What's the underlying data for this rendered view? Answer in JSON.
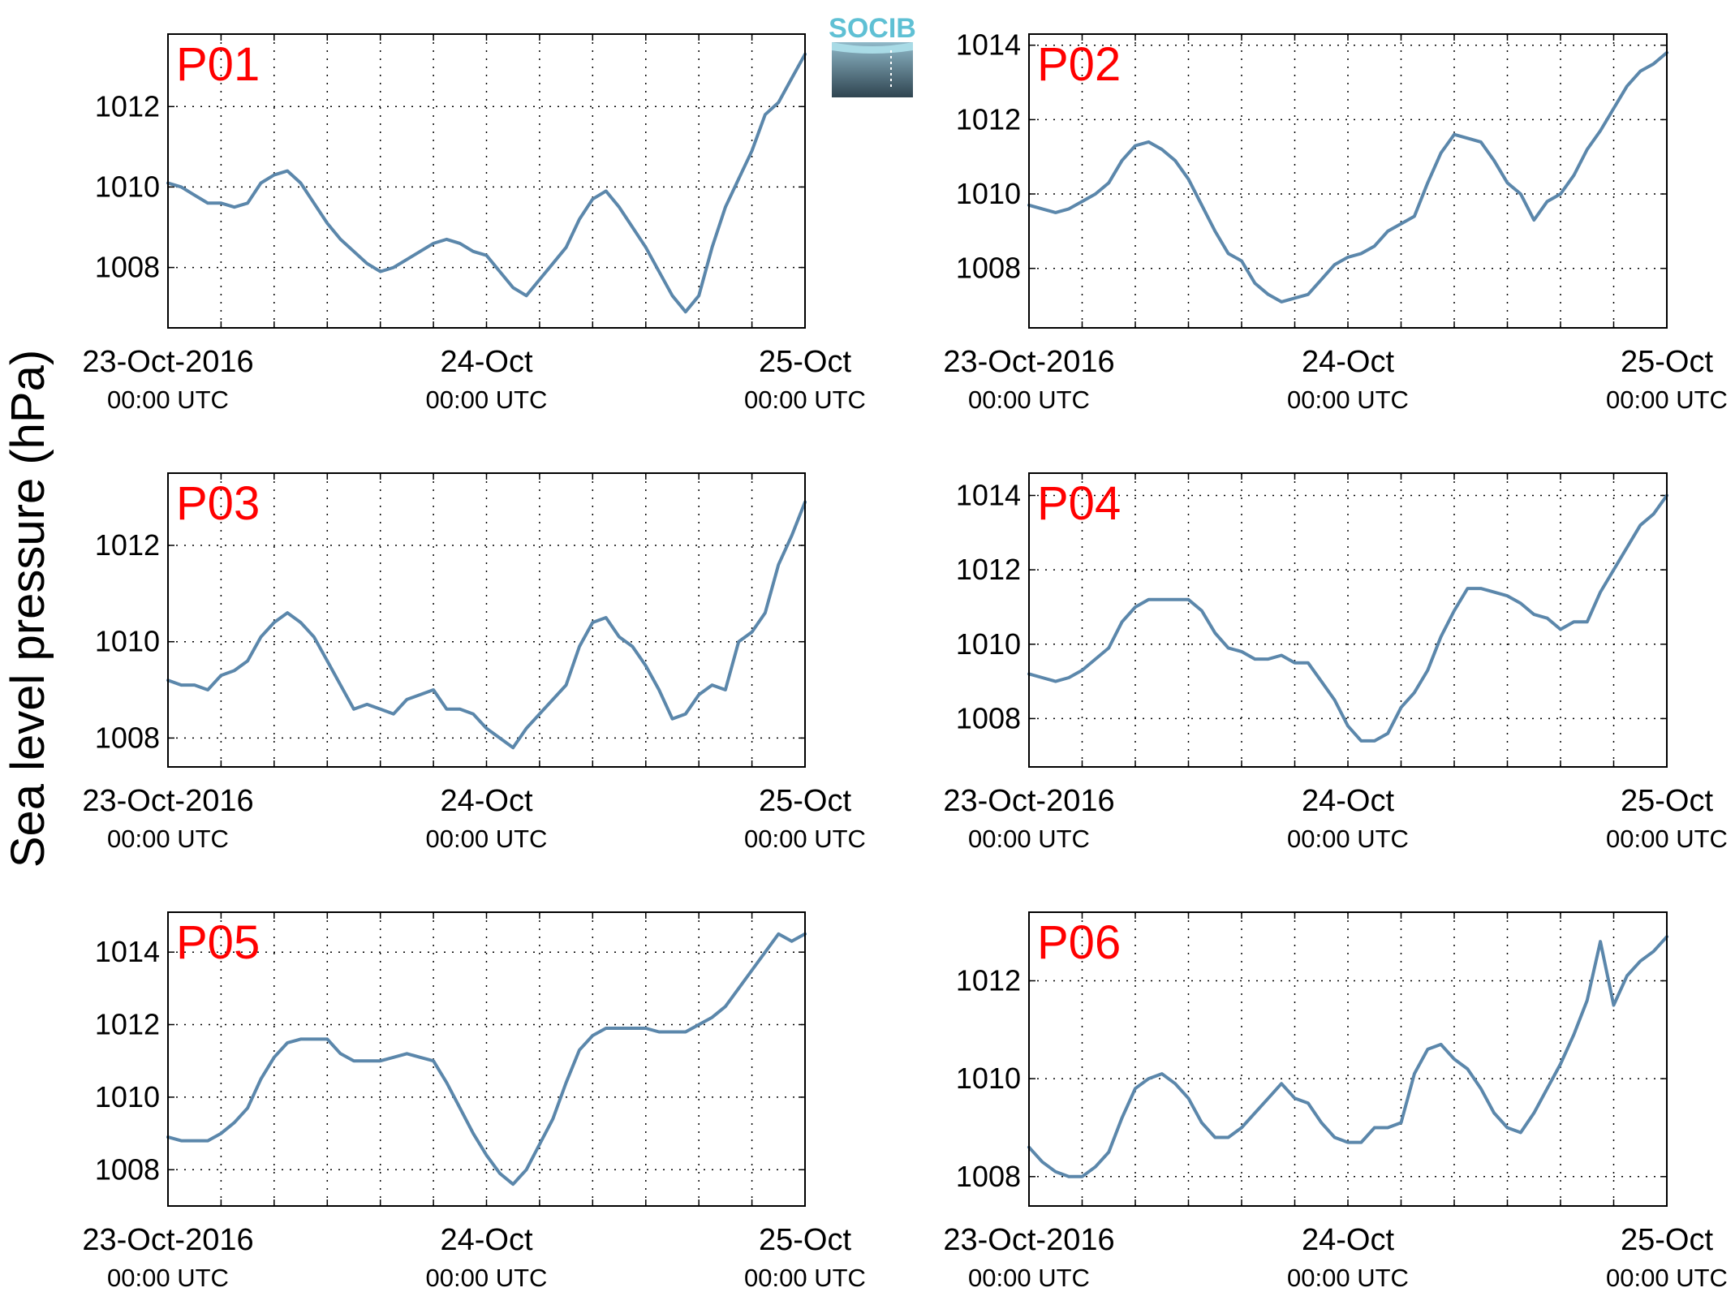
{
  "figure": {
    "ylabel": "Sea level pressure (hPa)",
    "logo_text": "SOCIB",
    "line_color": "#5b87ab",
    "label_color": "#ff0000"
  },
  "chart_data": [
    {
      "type": "line",
      "name": "P01",
      "ylim": [
        1006.5,
        1013.8
      ],
      "yticks": [
        1008,
        1010,
        1012
      ],
      "xlim": [
        0,
        48
      ],
      "grid": true,
      "xticks": [
        {
          "at": 0,
          "label": "23-Oct-2016",
          "sub": "00:00 UTC"
        },
        {
          "at": 24,
          "label": "24-Oct",
          "sub": "00:00 UTC"
        },
        {
          "at": 48,
          "label": "25-Oct",
          "sub": "00:00 UTC"
        }
      ],
      "x": [
        0,
        1,
        2,
        3,
        4,
        5,
        6,
        7,
        8,
        9,
        10,
        11,
        12,
        13,
        14,
        15,
        16,
        17,
        18,
        19,
        20,
        21,
        22,
        23,
        24,
        25,
        26,
        27,
        28,
        29,
        30,
        31,
        32,
        33,
        34,
        35,
        36,
        37,
        38,
        39,
        40,
        41,
        42,
        43,
        44,
        45,
        46,
        47,
        48
      ],
      "y": [
        1010.1,
        1010.0,
        1009.8,
        1009.6,
        1009.6,
        1009.5,
        1009.6,
        1010.1,
        1010.3,
        1010.4,
        1010.1,
        1009.6,
        1009.1,
        1008.7,
        1008.4,
        1008.1,
        1007.9,
        1008.0,
        1008.2,
        1008.4,
        1008.6,
        1008.7,
        1008.6,
        1008.4,
        1008.3,
        1007.9,
        1007.5,
        1007.3,
        1007.7,
        1008.1,
        1008.5,
        1009.2,
        1009.7,
        1009.9,
        1009.5,
        1009.0,
        1008.5,
        1007.9,
        1007.3,
        1006.9,
        1007.3,
        1008.5,
        1009.5,
        1010.2,
        1010.9,
        1011.8,
        1012.1,
        1012.7,
        1013.3
      ]
    },
    {
      "type": "line",
      "name": "P02",
      "ylim": [
        1006.4,
        1014.3
      ],
      "yticks": [
        1008,
        1010,
        1012,
        1014
      ],
      "xlim": [
        0,
        48
      ],
      "grid": true,
      "xticks": [
        {
          "at": 0,
          "label": "23-Oct-2016",
          "sub": "00:00 UTC"
        },
        {
          "at": 24,
          "label": "24-Oct",
          "sub": "00:00 UTC"
        },
        {
          "at": 48,
          "label": "25-Oct",
          "sub": "00:00 UTC"
        }
      ],
      "x": [
        0,
        1,
        2,
        3,
        4,
        5,
        6,
        7,
        8,
        9,
        10,
        11,
        12,
        13,
        14,
        15,
        16,
        17,
        18,
        19,
        20,
        21,
        22,
        23,
        24,
        25,
        26,
        27,
        28,
        29,
        30,
        31,
        32,
        33,
        34,
        35,
        36,
        37,
        38,
        39,
        40,
        41,
        42,
        43,
        44,
        45,
        46,
        47,
        48
      ],
      "y": [
        1009.7,
        1009.6,
        1009.5,
        1009.6,
        1009.8,
        1010.0,
        1010.3,
        1010.9,
        1011.3,
        1011.4,
        1011.2,
        1010.9,
        1010.4,
        1009.7,
        1009.0,
        1008.4,
        1008.2,
        1007.6,
        1007.3,
        1007.1,
        1007.2,
        1007.3,
        1007.7,
        1008.1,
        1008.3,
        1008.4,
        1008.6,
        1009.0,
        1009.2,
        1009.4,
        1010.3,
        1011.1,
        1011.6,
        1011.5,
        1011.4,
        1010.9,
        1010.3,
        1010.0,
        1009.3,
        1009.8,
        1010.0,
        1010.5,
        1011.2,
        1011.7,
        1012.3,
        1012.9,
        1013.3,
        1013.5,
        1013.8
      ]
    },
    {
      "type": "line",
      "name": "P03",
      "ylim": [
        1007.4,
        1013.5
      ],
      "yticks": [
        1008,
        1010,
        1012
      ],
      "xlim": [
        0,
        48
      ],
      "grid": true,
      "xticks": [
        {
          "at": 0,
          "label": "23-Oct-2016",
          "sub": "00:00 UTC"
        },
        {
          "at": 24,
          "label": "24-Oct",
          "sub": "00:00 UTC"
        },
        {
          "at": 48,
          "label": "25-Oct",
          "sub": "00:00 UTC"
        }
      ],
      "x": [
        0,
        1,
        2,
        3,
        4,
        5,
        6,
        7,
        8,
        9,
        10,
        11,
        12,
        13,
        14,
        15,
        16,
        17,
        18,
        19,
        20,
        21,
        22,
        23,
        24,
        25,
        26,
        27,
        28,
        29,
        30,
        31,
        32,
        33,
        34,
        35,
        36,
        37,
        38,
        39,
        40,
        41,
        42,
        43,
        44,
        45,
        46,
        47,
        48
      ],
      "y": [
        1009.2,
        1009.1,
        1009.1,
        1009.0,
        1009.3,
        1009.4,
        1009.6,
        1010.1,
        1010.4,
        1010.6,
        1010.4,
        1010.1,
        1009.6,
        1009.1,
        1008.6,
        1008.7,
        1008.6,
        1008.5,
        1008.8,
        1008.9,
        1009.0,
        1008.6,
        1008.6,
        1008.5,
        1008.2,
        1008.0,
        1007.8,
        1008.2,
        1008.5,
        1008.8,
        1009.1,
        1009.9,
        1010.4,
        1010.5,
        1010.1,
        1009.9,
        1009.5,
        1009.0,
        1008.4,
        1008.5,
        1008.9,
        1009.1,
        1009.0,
        1010.0,
        1010.2,
        1010.6,
        1011.6,
        1012.2,
        1012.9
      ]
    },
    {
      "type": "line",
      "name": "P04",
      "ylim": [
        1006.7,
        1014.6
      ],
      "yticks": [
        1008,
        1010,
        1012,
        1014
      ],
      "xlim": [
        0,
        48
      ],
      "grid": true,
      "xticks": [
        {
          "at": 0,
          "label": "23-Oct-2016",
          "sub": "00:00 UTC"
        },
        {
          "at": 24,
          "label": "24-Oct",
          "sub": "00:00 UTC"
        },
        {
          "at": 48,
          "label": "25-Oct",
          "sub": "00:00 UTC"
        }
      ],
      "x": [
        0,
        1,
        2,
        3,
        4,
        5,
        6,
        7,
        8,
        9,
        10,
        11,
        12,
        13,
        14,
        15,
        16,
        17,
        18,
        19,
        20,
        21,
        22,
        23,
        24,
        25,
        26,
        27,
        28,
        29,
        30,
        31,
        32,
        33,
        34,
        35,
        36,
        37,
        38,
        39,
        40,
        41,
        42,
        43,
        44,
        45,
        46,
        47,
        48
      ],
      "y": [
        1009.2,
        1009.1,
        1009.0,
        1009.1,
        1009.3,
        1009.6,
        1009.9,
        1010.6,
        1011.0,
        1011.2,
        1011.2,
        1011.2,
        1011.2,
        1010.9,
        1010.3,
        1009.9,
        1009.8,
        1009.6,
        1009.6,
        1009.7,
        1009.5,
        1009.5,
        1009.0,
        1008.5,
        1007.8,
        1007.4,
        1007.4,
        1007.6,
        1008.3,
        1008.7,
        1009.3,
        1010.2,
        1010.9,
        1011.5,
        1011.5,
        1011.4,
        1011.3,
        1011.1,
        1010.8,
        1010.7,
        1010.4,
        1010.6,
        1010.6,
        1011.4,
        1012.0,
        1012.6,
        1013.2,
        1013.5,
        1014.0
      ]
    },
    {
      "type": "line",
      "name": "P05",
      "ylim": [
        1007.0,
        1015.1
      ],
      "yticks": [
        1008,
        1010,
        1012,
        1014
      ],
      "xlim": [
        0,
        48
      ],
      "grid": true,
      "xticks": [
        {
          "at": 0,
          "label": "23-Oct-2016",
          "sub": "00:00 UTC"
        },
        {
          "at": 24,
          "label": "24-Oct",
          "sub": "00:00 UTC"
        },
        {
          "at": 48,
          "label": "25-Oct",
          "sub": "00:00 UTC"
        }
      ],
      "x": [
        0,
        1,
        2,
        3,
        4,
        5,
        6,
        7,
        8,
        9,
        10,
        11,
        12,
        13,
        14,
        15,
        16,
        17,
        18,
        19,
        20,
        21,
        22,
        23,
        24,
        25,
        26,
        27,
        28,
        29,
        30,
        31,
        32,
        33,
        34,
        35,
        36,
        37,
        38,
        39,
        40,
        41,
        42,
        43,
        44,
        45,
        46,
        47,
        48
      ],
      "y": [
        1008.9,
        1008.8,
        1008.8,
        1008.8,
        1009.0,
        1009.3,
        1009.7,
        1010.5,
        1011.1,
        1011.5,
        1011.6,
        1011.6,
        1011.6,
        1011.2,
        1011.0,
        1011.0,
        1011.0,
        1011.1,
        1011.2,
        1011.1,
        1011.0,
        1010.4,
        1009.7,
        1009.0,
        1008.4,
        1007.9,
        1007.6,
        1008.0,
        1008.7,
        1009.4,
        1010.4,
        1011.3,
        1011.7,
        1011.9,
        1011.9,
        1011.9,
        1011.9,
        1011.8,
        1011.8,
        1011.8,
        1012.0,
        1012.2,
        1012.5,
        1013.0,
        1013.5,
        1014.0,
        1014.5,
        1014.3,
        1014.5
      ]
    },
    {
      "type": "line",
      "name": "P06",
      "ylim": [
        1007.4,
        1013.4
      ],
      "yticks": [
        1008,
        1010,
        1012
      ],
      "xlim": [
        0,
        48
      ],
      "grid": true,
      "xticks": [
        {
          "at": 0,
          "label": "23-Oct-2016",
          "sub": "00:00 UTC"
        },
        {
          "at": 24,
          "label": "24-Oct",
          "sub": "00:00 UTC"
        },
        {
          "at": 48,
          "label": "25-Oct",
          "sub": "00:00 UTC"
        }
      ],
      "x": [
        0,
        1,
        2,
        3,
        4,
        5,
        6,
        7,
        8,
        9,
        10,
        11,
        12,
        13,
        14,
        15,
        16,
        17,
        18,
        19,
        20,
        21,
        22,
        23,
        24,
        25,
        26,
        27,
        28,
        29,
        30,
        31,
        32,
        33,
        34,
        35,
        36,
        37,
        38,
        39,
        40,
        41,
        42,
        43,
        44,
        45,
        46,
        47,
        48
      ],
      "y": [
        1008.6,
        1008.3,
        1008.1,
        1008.0,
        1008.0,
        1008.2,
        1008.5,
        1009.2,
        1009.8,
        1010.0,
        1010.1,
        1009.9,
        1009.6,
        1009.1,
        1008.8,
        1008.8,
        1009.0,
        1009.3,
        1009.6,
        1009.9,
        1009.6,
        1009.5,
        1009.1,
        1008.8,
        1008.7,
        1008.7,
        1009.0,
        1009.0,
        1009.1,
        1010.1,
        1010.6,
        1010.7,
        1010.4,
        1010.2,
        1009.8,
        1009.3,
        1009.0,
        1008.9,
        1009.3,
        1009.8,
        1010.3,
        1010.9,
        1011.6,
        1012.8,
        1011.5,
        1012.1,
        1012.4,
        1012.6,
        1012.9
      ]
    }
  ]
}
